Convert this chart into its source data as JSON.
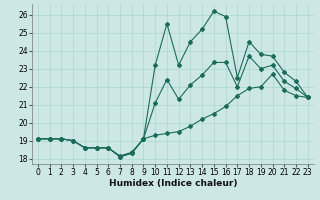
{
  "xlabel": "Humidex (Indice chaleur)",
  "background_color": "#cde8e4",
  "line_color": "#1a6b5a",
  "xlim": [
    -0.5,
    23.5
  ],
  "ylim": [
    17.7,
    26.6
  ],
  "xticks": [
    0,
    1,
    2,
    3,
    4,
    5,
    6,
    7,
    8,
    9,
    10,
    11,
    12,
    13,
    14,
    15,
    16,
    17,
    18,
    19,
    20,
    21,
    22,
    23
  ],
  "yticks": [
    18,
    19,
    20,
    21,
    22,
    23,
    24,
    25,
    26
  ],
  "grid_color": "#a8d8d2",
  "line_min_x": [
    0,
    1,
    2,
    3,
    4,
    5,
    6,
    7,
    8,
    9,
    10,
    11,
    12,
    13,
    14,
    15,
    16,
    17,
    18,
    19,
    20,
    21,
    22,
    23
  ],
  "line_min_y": [
    19.1,
    19.1,
    19.1,
    19.0,
    18.6,
    18.6,
    18.6,
    18.1,
    18.3,
    19.1,
    19.3,
    19.4,
    19.5,
    19.8,
    20.2,
    20.5,
    20.9,
    21.5,
    21.9,
    22.0,
    22.7,
    21.8,
    21.5,
    21.4
  ],
  "line_max_x": [
    0,
    1,
    2,
    3,
    4,
    5,
    6,
    7,
    8,
    9,
    10,
    11,
    12,
    13,
    14,
    15,
    16,
    17,
    18,
    19,
    20,
    21,
    22,
    23
  ],
  "line_max_y": [
    19.1,
    19.1,
    19.1,
    19.0,
    18.6,
    18.6,
    18.6,
    18.1,
    18.3,
    19.1,
    23.2,
    25.5,
    23.2,
    24.5,
    25.2,
    26.2,
    25.9,
    22.5,
    24.5,
    23.8,
    23.7,
    22.8,
    22.3,
    21.4
  ],
  "line_avg_x": [
    0,
    1,
    2,
    3,
    4,
    5,
    6,
    7,
    8,
    9,
    10,
    11,
    12,
    13,
    14,
    15,
    16,
    17,
    18,
    19,
    20,
    21,
    22,
    23
  ],
  "line_avg_y": [
    19.1,
    19.1,
    19.1,
    19.0,
    18.6,
    18.6,
    18.6,
    18.15,
    18.35,
    19.1,
    21.1,
    22.4,
    21.3,
    22.1,
    22.65,
    23.35,
    23.35,
    22.0,
    23.7,
    23.0,
    23.2,
    22.3,
    21.9,
    21.4
  ]
}
